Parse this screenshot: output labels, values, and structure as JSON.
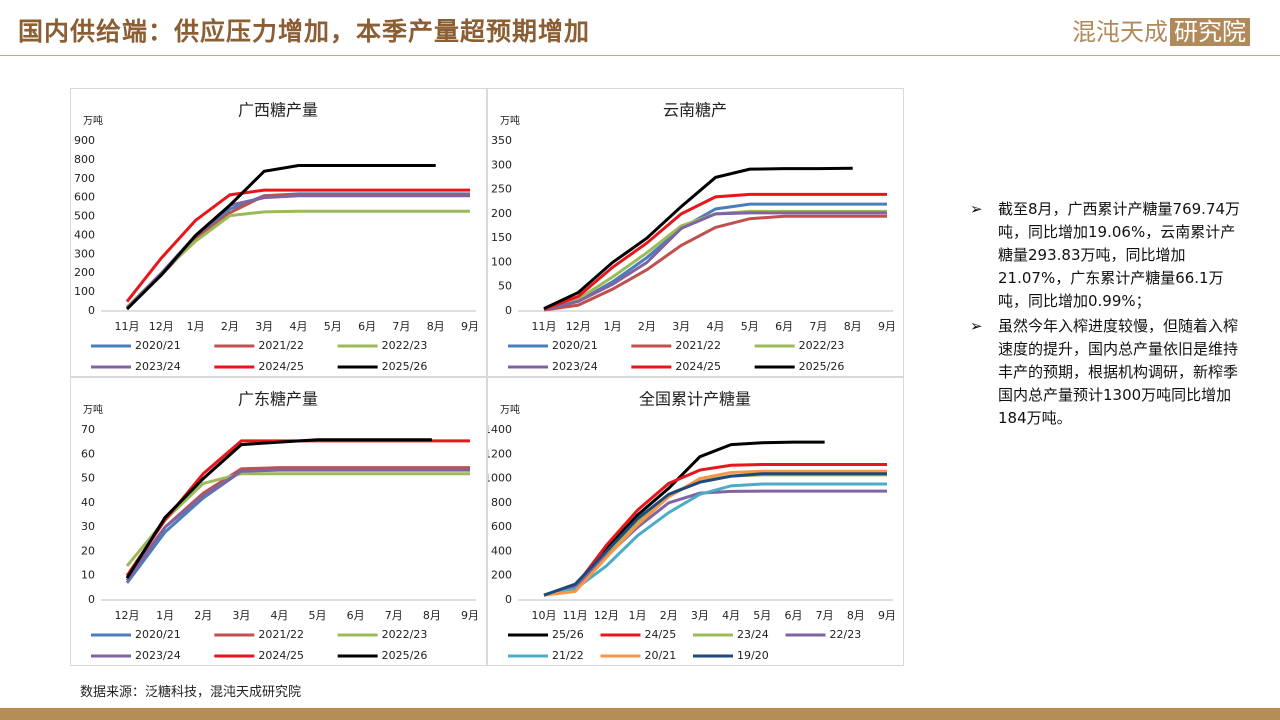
{
  "header": {
    "title": "国内供给端：供应压力增加，本季产量超预期增加",
    "logo": "混沌天成",
    "logo_box": "研究院"
  },
  "bullets": [
    "截至8月，广西累计产糖量769.74万吨，同比增加19.06%，云南累计产糖量293.83万吨，同比增加21.07%，广东累计产糖量66.1万吨，同比增加0.99%；",
    "虽然今年入榨进度较慢，但随着入榨速度的提升，国内总产量依旧是维持丰产的预期，根据机构调研，新榨季国内总产量预计1300万吨同比增加184万吨。"
  ],
  "source": "数据来源：泛糖科技，混沌天成研究院",
  "chart_data": [
    {
      "type": "line",
      "title": "广西糖产量",
      "y_label": "万吨",
      "categories": [
        "11月",
        "12月",
        "1月",
        "2月",
        "3月",
        "4月",
        "5月",
        "6月",
        "7月",
        "8月",
        "9月"
      ],
      "ylim": [
        0,
        900
      ],
      "yticks": [
        0,
        100,
        200,
        300,
        400,
        500,
        600,
        700,
        800,
        900
      ],
      "series": [
        {
          "name": "2020/21",
          "color": "#4a7ebb",
          "values": [
            15,
            200,
            390,
            540,
            610,
            620,
            620,
            620,
            620,
            620,
            620
          ]
        },
        {
          "name": "2021/22",
          "color": "#c0504d",
          "values": [
            15,
            190,
            380,
            520,
            610,
            615,
            615,
            615,
            615,
            615,
            615
          ]
        },
        {
          "name": "2022/23",
          "color": "#9bbb59",
          "values": [
            20,
            200,
            370,
            505,
            525,
            528,
            528,
            528,
            528,
            528,
            528
          ]
        },
        {
          "name": "2023/24",
          "color": "#8064a2",
          "values": [
            15,
            200,
            400,
            560,
            600,
            610,
            610,
            610,
            610,
            610,
            610
          ]
        },
        {
          "name": "2024/25",
          "color": "#e8161b",
          "values": [
            50,
            280,
            480,
            615,
            640,
            640,
            640,
            640,
            640,
            640,
            640
          ]
        },
        {
          "name": "2025/26",
          "color": "#000000",
          "values": [
            10,
            190,
            400,
            560,
            740,
            770,
            770,
            770,
            770,
            770,
            null
          ]
        }
      ]
    },
    {
      "type": "line",
      "title": "云南糖产",
      "y_label": "万吨",
      "categories": [
        "11月",
        "12月",
        "1月",
        "2月",
        "3月",
        "4月",
        "5月",
        "6月",
        "7月",
        "8月",
        "9月"
      ],
      "ylim": [
        0,
        350
      ],
      "yticks": [
        0,
        50,
        100,
        150,
        200,
        250,
        300,
        350
      ],
      "series": [
        {
          "name": "2020/21",
          "color": "#4a7ebb",
          "values": [
            3,
            20,
            60,
            110,
            170,
            210,
            220,
            220,
            220,
            220,
            220
          ]
        },
        {
          "name": "2021/22",
          "color": "#c0504d",
          "values": [
            2,
            12,
            45,
            85,
            135,
            172,
            190,
            195,
            195,
            195,
            195
          ]
        },
        {
          "name": "2022/23",
          "color": "#9bbb59",
          "values": [
            3,
            25,
            70,
            120,
            175,
            200,
            205,
            205,
            205,
            205,
            205
          ]
        },
        {
          "name": "2023/24",
          "color": "#8064a2",
          "values": [
            3,
            20,
            55,
            100,
            170,
            200,
            202,
            202,
            202,
            202,
            202
          ]
        },
        {
          "name": "2024/25",
          "color": "#e8161b",
          "values": [
            4,
            30,
            90,
            140,
            200,
            235,
            240,
            240,
            240,
            240,
            240
          ]
        },
        {
          "name": "2025/26",
          "color": "#000000",
          "values": [
            5,
            38,
            100,
            150,
            215,
            275,
            292,
            293,
            293,
            294,
            null
          ]
        }
      ]
    },
    {
      "type": "line",
      "title": "广东糖产量",
      "y_label": "万吨",
      "categories": [
        "12月",
        "1月",
        "2月",
        "3月",
        "4月",
        "5月",
        "6月",
        "7月",
        "8月",
        "9月"
      ],
      "ylim": [
        0,
        70
      ],
      "yticks": [
        0,
        10,
        20,
        30,
        40,
        50,
        60,
        70
      ],
      "series": [
        {
          "name": "2020/21",
          "color": "#4a7ebb",
          "values": [
            7,
            28,
            42,
            53,
            54,
            54,
            54,
            54,
            54,
            54
          ]
        },
        {
          "name": "2021/22",
          "color": "#c0504d",
          "values": [
            9,
            30,
            44,
            54,
            54.5,
            54.5,
            54.5,
            54.5,
            54.5,
            54.5
          ]
        },
        {
          "name": "2022/23",
          "color": "#9bbb59",
          "values": [
            14,
            33,
            48,
            52,
            52,
            52,
            52,
            52,
            52,
            52
          ]
        },
        {
          "name": "2023/24",
          "color": "#8064a2",
          "values": [
            8,
            30,
            43,
            53,
            53.5,
            53.5,
            53.5,
            53.5,
            53.5,
            53.5
          ]
        },
        {
          "name": "2024/25",
          "color": "#e8161b",
          "values": [
            10,
            33,
            52,
            65.5,
            65.5,
            65.5,
            65.5,
            65.5,
            65.5,
            65.5
          ]
        },
        {
          "name": "2025/26",
          "color": "#000000",
          "values": [
            9,
            34,
            50,
            64,
            65,
            66,
            66,
            66,
            66,
            null
          ]
        }
      ]
    },
    {
      "type": "line",
      "title": "全国累计产糖量",
      "y_label": "万吨",
      "categories": [
        "10月",
        "11月",
        "12月",
        "1月",
        "2月",
        "3月",
        "4月",
        "5月",
        "6月",
        "7月",
        "8月",
        "9月"
      ],
      "ylim": [
        0,
        1400
      ],
      "yticks": [
        0,
        200,
        400,
        600,
        800,
        1000,
        1200,
        1400
      ],
      "series": [
        {
          "name": "25/26",
          "color": "#000000",
          "values": [
            40,
            120,
            420,
            700,
            920,
            1180,
            1280,
            1295,
            1300,
            1300,
            null,
            null
          ]
        },
        {
          "name": "24/25",
          "color": "#e8161b",
          "values": [
            40,
            110,
            450,
            740,
            960,
            1070,
            1110,
            1116,
            1116,
            1116,
            1116,
            1116
          ]
        },
        {
          "name": "23/24",
          "color": "#9bbb59",
          "values": [
            40,
            100,
            380,
            650,
            870,
            980,
            1020,
            1030,
            1030,
            1030,
            1030,
            1030
          ]
        },
        {
          "name": "22/23",
          "color": "#8064a2",
          "values": [
            40,
            100,
            360,
            600,
            800,
            880,
            895,
            897,
            897,
            897,
            897,
            897
          ]
        },
        {
          "name": "21/22",
          "color": "#4bacc6",
          "values": [
            40,
            90,
            280,
            530,
            720,
            870,
            940,
            955,
            955,
            955,
            955,
            955
          ]
        },
        {
          "name": "20/21",
          "color": "#f79646",
          "values": [
            40,
            70,
            350,
            620,
            850,
            1000,
            1050,
            1060,
            1060,
            1060,
            1060,
            1060
          ]
        },
        {
          "name": "19/20",
          "color": "#1f497d",
          "values": [
            40,
            130,
            400,
            670,
            870,
            970,
            1020,
            1040,
            1040,
            1040,
            1040,
            1040
          ]
        }
      ]
    }
  ]
}
